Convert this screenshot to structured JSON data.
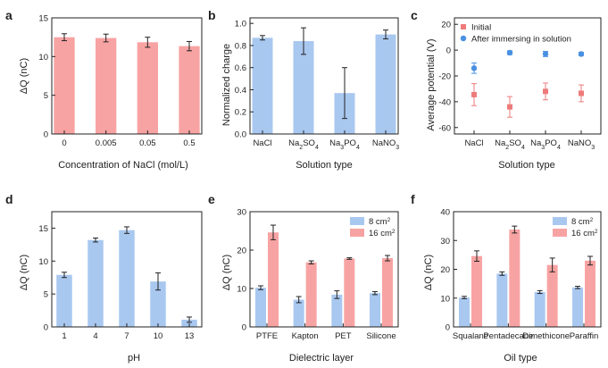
{
  "panels": [
    {
      "letter": "a",
      "chart_data": {
        "type": "bar",
        "categories": [
          "0",
          "0.005",
          "0.05",
          "0.5"
        ],
        "values": [
          12.5,
          12.4,
          11.85,
          11.35
        ],
        "errors": [
          0.45,
          0.5,
          0.65,
          0.6
        ],
        "xlabel": "Concentration of NaCl (mol/L)",
        "ylabel": "ΔQ (nC)",
        "ylim": [
          0,
          15
        ],
        "yticks": [
          "0",
          "5",
          "10",
          "15"
        ],
        "bar_color": "#f8a3a3"
      }
    },
    {
      "letter": "b",
      "chart_data": {
        "type": "bar",
        "categories": [
          "NaCl",
          "Na2SO4",
          "Na3PO4",
          "NaNO3"
        ],
        "categories_html": [
          {
            "base": "NaCl"
          },
          {
            "base": "Na",
            "sub1": "2",
            "mid": "SO",
            "sub2": "4"
          },
          {
            "base": "Na",
            "sub1": "3",
            "mid": "PO",
            "sub2": "4"
          },
          {
            "base": "NaNO",
            "sub1": "3"
          }
        ],
        "values": [
          0.87,
          0.84,
          0.37,
          0.9
        ],
        "errors": [
          0.02,
          0.12,
          0.23,
          0.04
        ],
        "xlabel": "Solution type",
        "ylabel": "Normalized charge",
        "ylim": [
          0,
          1.05
        ],
        "yticks": [
          "0.0",
          "0.2",
          "0.4",
          "0.6",
          "0.8",
          "1.0"
        ],
        "bar_color": "#a9c8f0"
      }
    },
    {
      "letter": "c",
      "chart_data": {
        "type": "scatter",
        "categories": [
          "NaCl",
          "Na2SO4",
          "Na3PO4",
          "NaNO3"
        ],
        "series": [
          {
            "name": "Initial",
            "values": [
              -34.5,
              -44,
              -32,
              -33.5
            ],
            "errors": [
              8.5,
              8,
              6.5,
              6.5
            ],
            "color": "#ee7b7b",
            "marker": "square"
          },
          {
            "name": "After immersing in solution",
            "values": [
              -14,
              -2,
              -3,
              -3
            ],
            "errors": [
              4,
              1.5,
              2,
              1.2
            ],
            "color": "#4a90e2",
            "marker": "circle"
          }
        ],
        "xlabel": "Solution type",
        "ylabel": "Average potential (V)",
        "ylim": [
          -65,
          25
        ],
        "yticks": [
          "20",
          "0",
          "-20",
          "-40",
          "-60"
        ],
        "legend": "top-left"
      }
    },
    {
      "letter": "d",
      "chart_data": {
        "type": "bar",
        "categories": [
          "1",
          "4",
          "7",
          "10",
          "13"
        ],
        "values": [
          7.9,
          13.2,
          14.7,
          6.9,
          1.1
        ],
        "errors": [
          0.4,
          0.3,
          0.5,
          1.3,
          0.4
        ],
        "xlabel": "pH",
        "ylabel": "ΔQ (nC)",
        "ylim": [
          0,
          17.5
        ],
        "yticks": [
          "0",
          "5",
          "10",
          "15"
        ],
        "bar_color": "#a9c8f0"
      }
    },
    {
      "letter": "e",
      "chart_data": {
        "type": "bar",
        "categories": [
          "PTFE",
          "Kapton",
          "PET",
          "Silicone"
        ],
        "series": [
          {
            "name": "8 cm",
            "sup": "2",
            "values": [
              10.2,
              7.1,
              8.4,
              8.8
            ],
            "errors": [
              0.5,
              0.8,
              1.0,
              0.4
            ],
            "color": "#a9c8f0"
          },
          {
            "name": "16 cm",
            "sup": "2",
            "values": [
              24.6,
              16.8,
              17.8,
              17.9
            ],
            "errors": [
              1.9,
              0.4,
              0.2,
              0.7
            ],
            "color": "#f8a3a3"
          }
        ],
        "xlabel": "Dielectric layer",
        "ylabel": "ΔQ (nC)",
        "ylim": [
          0,
          30
        ],
        "yticks": [
          "0",
          "10",
          "20",
          "30"
        ],
        "legend": "top-right"
      }
    },
    {
      "letter": "f",
      "chart_data": {
        "type": "bar",
        "categories": [
          "Squalane",
          "Pentadecane",
          "Dimethicone",
          "Paraffin"
        ],
        "series": [
          {
            "name": "8 cm",
            "sup": "2",
            "values": [
              10.2,
              18.5,
              12.1,
              13.7
            ],
            "errors": [
              0.4,
              0.6,
              0.5,
              0.4
            ],
            "color": "#a9c8f0"
          },
          {
            "name": "16 cm",
            "sup": "2",
            "values": [
              24.6,
              33.8,
              21.5,
              23.0
            ],
            "errors": [
              1.8,
              1.2,
              2.4,
              1.5
            ],
            "color": "#f8a3a3"
          }
        ],
        "xlabel": "Oil type",
        "ylabel": "ΔQ (nC)",
        "ylim": [
          0,
          40
        ],
        "yticks": [
          "0",
          "10",
          "20",
          "30",
          "40"
        ],
        "legend": "top-right"
      }
    }
  ]
}
